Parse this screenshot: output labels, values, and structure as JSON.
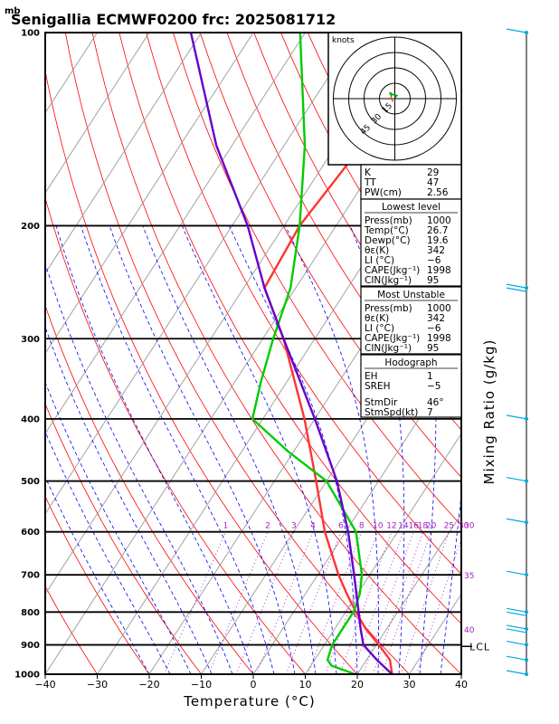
{
  "title": "Senigallia ECMWF0200  frc: 2025081712",
  "units_mb": "mb",
  "ylabel_right": "Mixing Ratio  (g/kg)",
  "lcl_label": "LCL",
  "hodograph": {
    "units": "knots",
    "ring_labels": [
      "15",
      "30",
      "45"
    ]
  },
  "indices": {
    "top": [
      {
        "label": "K",
        "value": "29"
      },
      {
        "label": "TT",
        "value": "47"
      },
      {
        "label": "PW(cm)",
        "value": "2.56"
      }
    ],
    "lowest": {
      "header": "Lowest level",
      "rows": [
        {
          "label": "Press(mb)",
          "value": "1000"
        },
        {
          "label": "Temp(°C)",
          "value": "26.7"
        },
        {
          "label": "Dewp(°C)",
          "value": "19.6"
        },
        {
          "label": "θε(K)",
          "value": "342"
        },
        {
          "label": "LI (°C)",
          "value": "−6"
        },
        {
          "label": "CAPE(Jkg⁻¹)",
          "value": "1998"
        },
        {
          "label": "CIN(Jkg⁻¹)",
          "value": "95"
        }
      ]
    },
    "unstable": {
      "header": "Most Unstable",
      "rows": [
        {
          "label": "Press(mb)",
          "value": "1000"
        },
        {
          "label": "θε(K)",
          "value": "342"
        },
        {
          "label": "LI (°C)",
          "value": "−6"
        },
        {
          "label": "CAPE(Jkg⁻¹)",
          "value": "1998"
        },
        {
          "label": "CIN(Jkg⁻¹)",
          "value": "95"
        }
      ]
    },
    "hodograph": {
      "header": "Hodograph",
      "rows": [
        {
          "label": "EH",
          "value": "1"
        },
        {
          "label": "SREH",
          "value": "−5"
        },
        {
          "label": "StmDir",
          "value": "46°"
        },
        {
          "label": "StmSpd(kt)",
          "value": "7"
        }
      ]
    }
  },
  "colors": {
    "isotherm": "#ff0000",
    "dry_adiabat": "#ff0000",
    "moist_adiabat": "#0000ff",
    "mixing_ratio": "#a020c0",
    "temperature": "#ff3333",
    "dewpoint": "#00cc00",
    "parcel": "#6600cc",
    "wind": "#00aadd"
  },
  "chart_data": {
    "type": "line",
    "title": "Senigallia ECMWF0200  frc: 2025081712",
    "xlabel": "Temperature (°C)",
    "ylabel": "mb",
    "xlim": [
      -40,
      40
    ],
    "ylim": [
      1000,
      100
    ],
    "yscale": "log",
    "x_ticks": [
      -40,
      -30,
      -20,
      -10,
      0,
      10,
      20,
      30,
      40
    ],
    "pressure_levels": [
      1000,
      900,
      800,
      700,
      600,
      500,
      400,
      300,
      200,
      100
    ],
    "mixing_ratio_labels": [
      "1",
      "2",
      "3",
      "4",
      "6",
      "8",
      "10",
      "12",
      "14",
      "16",
      "18",
      "20",
      "25",
      "30"
    ],
    "theta_e_labels": [
      "30",
      "35",
      "40"
    ],
    "series": [
      {
        "name": "temperature",
        "points": [
          [
            1000,
            26.7
          ],
          [
            950,
            24.5
          ],
          [
            900,
            20.5
          ],
          [
            850,
            16
          ],
          [
            800,
            12
          ],
          [
            750,
            8
          ],
          [
            700,
            4
          ],
          [
            600,
            -4
          ],
          [
            500,
            -12
          ],
          [
            400,
            -22
          ],
          [
            300,
            -36
          ],
          [
            250,
            -46
          ],
          [
            200,
            -47
          ],
          [
            150,
            -45
          ],
          [
            100,
            -47
          ]
        ]
      },
      {
        "name": "dewpoint",
        "points": [
          [
            1000,
            19.6
          ],
          [
            970,
            14
          ],
          [
            950,
            12.5
          ],
          [
            900,
            11.5
          ],
          [
            850,
            11.5
          ],
          [
            800,
            11.5
          ],
          [
            750,
            10.5
          ],
          [
            700,
            8.5
          ],
          [
            600,
            2
          ],
          [
            500,
            -10
          ],
          [
            450,
            -21
          ],
          [
            400,
            -32
          ],
          [
            350,
            -35
          ],
          [
            300,
            -38
          ],
          [
            250,
            -41
          ],
          [
            200,
            -47
          ],
          [
            150,
            -56
          ],
          [
            100,
            -71
          ]
        ]
      },
      {
        "name": "parcel",
        "points": [
          [
            1000,
            26.7
          ],
          [
            950,
            22
          ],
          [
            900,
            17.5
          ],
          [
            850,
            15
          ],
          [
            800,
            12.5
          ],
          [
            700,
            7
          ],
          [
            600,
            0.5
          ],
          [
            500,
            -8
          ],
          [
            400,
            -20
          ],
          [
            300,
            -36
          ],
          [
            250,
            -46
          ],
          [
            200,
            -57
          ],
          [
            150,
            -73
          ],
          [
            100,
            -92
          ]
        ]
      }
    ],
    "wind_barbs": [
      {
        "pressure": 100,
        "barbs": 1
      },
      {
        "pressure": 250,
        "barbs": 2
      },
      {
        "pressure": 400,
        "barbs": 1
      },
      {
        "pressure": 500,
        "barbs": 1
      },
      {
        "pressure": 580,
        "barbs": 1
      },
      {
        "pressure": 700,
        "barbs": 1
      },
      {
        "pressure": 800,
        "barbs": 2
      },
      {
        "pressure": 850,
        "barbs": 2
      },
      {
        "pressure": 900,
        "barbs": 1
      },
      {
        "pressure": 950,
        "barbs": 1
      },
      {
        "pressure": 1000,
        "barbs": 1
      }
    ],
    "lcl_pressure": 905,
    "hodograph_range_kt": 60,
    "hodograph_rings_kt": [
      15,
      30,
      45,
      60
    ],
    "hodograph_points": [
      [
        -3,
        2
      ],
      [
        -5,
        6
      ],
      [
        -2,
        4
      ],
      [
        2,
        3
      ],
      [
        0,
        1
      ]
    ]
  }
}
